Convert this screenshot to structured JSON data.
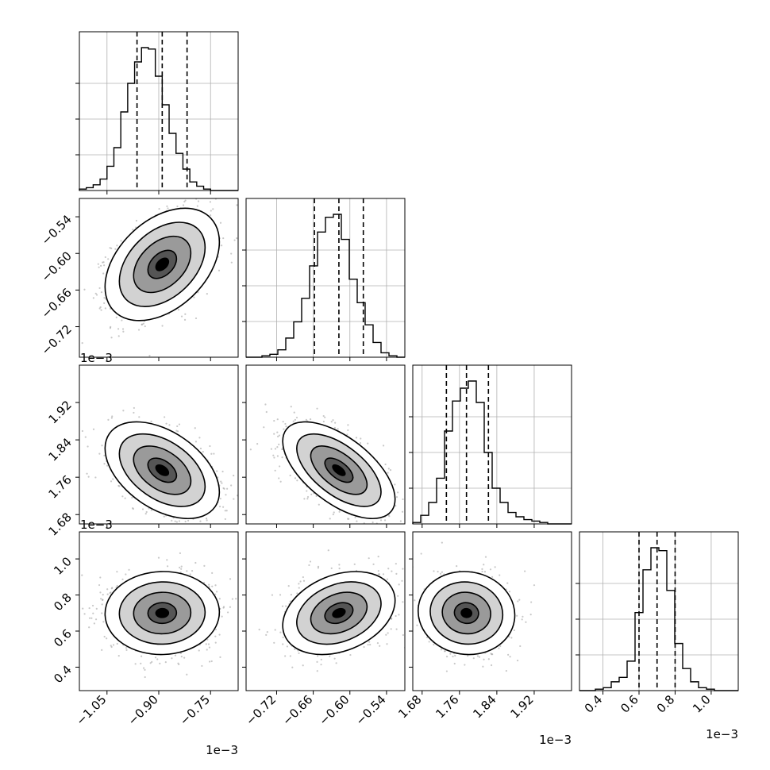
{
  "chart_data": {
    "type": "corner",
    "title": "",
    "parameters": [
      {
        "name": "p1",
        "label": "",
        "range": [
          -1.13,
          -0.67
        ],
        "ticks": [
          -1.05,
          -0.9,
          -0.75
        ],
        "tick_labels": [
          "−1.05",
          "−0.90",
          "−0.75"
        ],
        "scale_label": "1e−3",
        "quantiles": [
          -0.963,
          -0.89,
          -0.818
        ],
        "hist_bin_start": -1.13,
        "hist_bin_width": 0.02,
        "hist_counts": [
          1,
          2,
          4,
          8,
          17,
          30,
          55,
          75,
          90,
          100,
          99,
          80,
          60,
          40,
          26,
          15,
          6,
          3,
          1,
          0,
          0,
          0,
          0
        ]
      },
      {
        "name": "p2",
        "label": "",
        "range": [
          -0.77,
          -0.51
        ],
        "ticks": [
          -0.72,
          -0.66,
          -0.6,
          -0.54
        ],
        "tick_labels": [
          "−0.72",
          "−0.66",
          "−0.60",
          "−0.54"
        ],
        "scale_label": "1e−3",
        "quantiles": [
          -0.658,
          -0.618,
          -0.578
        ],
        "hist_bin_start": -0.77,
        "hist_bin_width": 0.013,
        "hist_counts": [
          0,
          0,
          1,
          2,
          5,
          13,
          24,
          40,
          62,
          85,
          95,
          97,
          80,
          53,
          37,
          22,
          10,
          3,
          1,
          0
        ]
      },
      {
        "name": "p3",
        "label": "",
        "range": [
          1.66,
          2.0
        ],
        "ticks": [
          1.68,
          1.76,
          1.84,
          1.92
        ],
        "tick_labels": [
          "1.68",
          "1.76",
          "1.84",
          "1.92"
        ],
        "scale_label": "1e−3",
        "quantiles": [
          1.732,
          1.775,
          1.822
        ],
        "hist_bin_start": 1.66,
        "hist_bin_width": 0.017,
        "hist_counts": [
          1,
          6,
          15,
          32,
          65,
          86,
          95,
          100,
          85,
          50,
          25,
          15,
          8,
          5,
          3,
          2,
          1,
          0,
          0,
          0
        ]
      },
      {
        "name": "p4",
        "label": "",
        "range": [
          0.27,
          1.15
        ],
        "ticks": [
          0.4,
          0.6,
          0.8,
          1.0
        ],
        "tick_labels": [
          "0.4",
          "0.6",
          "0.8",
          "1.0"
        ],
        "scale_label": "1e−3",
        "quantiles": [
          0.6,
          0.7,
          0.8
        ],
        "hist_bin_start": 0.27,
        "hist_bin_width": 0.044,
        "hist_counts": [
          0,
          0,
          1,
          2,
          6,
          9,
          20,
          53,
          82,
          97,
          95,
          68,
          32,
          15,
          6,
          2,
          1,
          0,
          0,
          0
        ]
      }
    ],
    "pairs": [
      {
        "x": "p1",
        "y": "p2",
        "mean": [
          -0.89,
          -0.618
        ],
        "sd": [
          0.072,
          0.04
        ],
        "corr": 0.4
      },
      {
        "x": "p1",
        "y": "p3",
        "mean": [
          -0.89,
          1.775
        ],
        "sd": [
          0.072,
          0.045
        ],
        "corr": -0.45
      },
      {
        "x": "p2",
        "y": "p3",
        "mean": [
          -0.618,
          1.775
        ],
        "sd": [
          0.04,
          0.045
        ],
        "corr": -0.6
      },
      {
        "x": "p1",
        "y": "p4",
        "mean": [
          -0.89,
          0.7
        ],
        "sd": [
          0.072,
          0.1
        ],
        "corr": 0.02
      },
      {
        "x": "p2",
        "y": "p4",
        "mean": [
          -0.618,
          0.7
        ],
        "sd": [
          0.04,
          0.1
        ],
        "corr": 0.3
      },
      {
        "x": "p3",
        "y": "p4",
        "mean": [
          1.775,
          0.7
        ],
        "sd": [
          0.045,
          0.1
        ],
        "corr": -0.05
      }
    ],
    "contour_levels_sigma": [
      0.5,
      1.0,
      1.5,
      2.0
    ],
    "grid": true,
    "colors": {
      "line": "#000000",
      "scatter": "#9a9a9a",
      "grid": "#b0b0b0"
    }
  }
}
